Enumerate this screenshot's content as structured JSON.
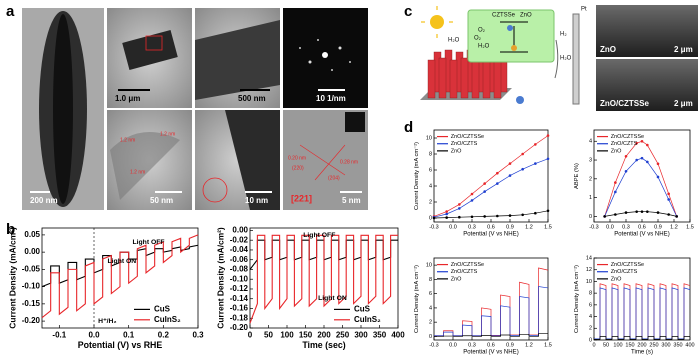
{
  "panel_labels": [
    "a",
    "b",
    "c",
    "d"
  ],
  "micrographs": [
    {
      "scale_bar": "200 nm"
    },
    {
      "scale_bar": "1.0 μm"
    },
    {
      "scale_bar": "500 nm"
    },
    {
      "scale_bar": "10 1/nm"
    },
    {
      "scale_bar": "50 nm",
      "annotations": [
        "1.2 nm",
        "1.2 nm",
        "1.2 nm"
      ]
    },
    {
      "scale_bar": "10 nm"
    },
    {
      "scale_bar": "5 nm",
      "annotations": [
        "0.20 nm",
        "(220)",
        "0.28 nm",
        "(204)",
        "[221]"
      ]
    }
  ],
  "schematic": {
    "labels": [
      "H₂O",
      "O₂",
      "CZTSSe",
      "ZnO",
      "H₂O",
      "O₂",
      "Pt",
      "H₂",
      "H₂O"
    ]
  },
  "sem": [
    {
      "label": "ZnO",
      "scale_bar": "2 μm"
    },
    {
      "label": "ZnO/CZTSSe",
      "scale_bar": "2 μm"
    }
  ],
  "chart_data": [
    {
      "type": "line",
      "xlabel": "Potential (V) vs RHE",
      "ylabel": "Current Density (mA/cm²)",
      "x": [
        -0.15,
        -0.125,
        -0.125,
        -0.1,
        -0.1,
        -0.075,
        -0.075,
        -0.05,
        -0.05,
        -0.025,
        -0.025,
        0,
        0,
        0.025,
        0.025,
        0.05,
        0.05,
        0.075,
        0.075,
        0.1,
        0.1,
        0.125,
        0.125,
        0.15,
        0.15,
        0.175,
        0.175,
        0.2,
        0.2,
        0.225,
        0.225,
        0.25,
        0.25,
        0.275,
        0.275,
        0.3
      ],
      "xlim": [
        -0.15,
        0.3
      ],
      "xticks": [
        -0.1,
        {
          "value": 0,
          "label": "0.0"
        },
        0.1,
        0.2,
        0.3
      ],
      "ylim": [
        -0.22,
        0.07
      ],
      "yticks": [
        {
          "value": -0.2,
          "label": "-0.20"
        },
        -0.15,
        {
          "value": -0.1,
          "label": "-0.10"
        },
        -0.05,
        {
          "value": 0,
          "label": "0.00"
        },
        0.05
      ],
      "reference_x": 0,
      "legend": "lower right",
      "annotations": [
        "Light OFF",
        "Light ON",
        "H⁺/H₂"
      ],
      "series": [
        {
          "name": "CuS",
          "color": "#000000",
          "values": [
            -0.1,
            -0.09,
            -0.04,
            -0.04,
            -0.09,
            -0.08,
            -0.03,
            -0.03,
            -0.08,
            -0.07,
            -0.02,
            -0.02,
            -0.06,
            -0.05,
            -0.01,
            -0.01,
            -0.04,
            -0.03,
            0,
            0,
            -0.02,
            -0.02,
            0.005,
            0.01,
            -0.01,
            0,
            0.01,
            0.01,
            0,
            0.005,
            0.01,
            0.015,
            0.005,
            0.01,
            0.015,
            0.02
          ]
        },
        {
          "name": "CuInS₂",
          "color": "#e8262a",
          "values": [
            -0.19,
            -0.17,
            -0.06,
            -0.06,
            -0.18,
            -0.16,
            -0.05,
            -0.05,
            -0.17,
            -0.15,
            -0.04,
            -0.03,
            -0.15,
            -0.13,
            -0.02,
            -0.01,
            -0.12,
            -0.1,
            0,
            0,
            -0.09,
            -0.07,
            0.01,
            0.02,
            -0.06,
            -0.04,
            0.02,
            0.03,
            -0.03,
            -0.01,
            0.03,
            0.04,
            0,
            0.02,
            0.04,
            0.05
          ]
        }
      ]
    },
    {
      "type": "line",
      "xlabel": "Time (sec)",
      "ylabel": "Current Density (mA/cm²)",
      "x": [
        0,
        20,
        20,
        40,
        40,
        60,
        60,
        80,
        80,
        100,
        100,
        120,
        120,
        140,
        140,
        160,
        160,
        180,
        180,
        200,
        200,
        220,
        220,
        240,
        240,
        260,
        260,
        280,
        280,
        300,
        300,
        320,
        320,
        340,
        340,
        360,
        360,
        380,
        380,
        400
      ],
      "xlim": [
        0,
        400
      ],
      "xticks": [
        0,
        50,
        100,
        150,
        200,
        250,
        300,
        350,
        400
      ],
      "ylim": [
        -0.2,
        0.005
      ],
      "yticks": [
        {
          "value": -0.2,
          "label": "-0.20"
        },
        -0.18,
        -0.16,
        -0.14,
        -0.12,
        {
          "value": -0.1,
          "label": "-0.10"
        },
        -0.08,
        -0.06,
        -0.04,
        -0.02,
        {
          "value": 0,
          "label": "0.00"
        }
      ],
      "legend": "lower right",
      "annotations": [
        "Light OFF",
        "Light ON"
      ],
      "series": [
        {
          "name": "CuS",
          "color": "#000000",
          "values": [
            -0.08,
            -0.06,
            -0.02,
            -0.02,
            -0.06,
            -0.055,
            -0.02,
            -0.02,
            -0.06,
            -0.055,
            -0.02,
            -0.02,
            -0.06,
            -0.055,
            -0.02,
            -0.02,
            -0.06,
            -0.055,
            -0.02,
            -0.02,
            -0.06,
            -0.055,
            -0.02,
            -0.02,
            -0.06,
            -0.055,
            -0.02,
            -0.02,
            -0.06,
            -0.055,
            -0.02,
            -0.02,
            -0.06,
            -0.055,
            -0.02,
            -0.02,
            -0.06,
            -0.055,
            -0.02,
            -0.02
          ]
        },
        {
          "name": "CuInS₂",
          "color": "#e8262a",
          "values": [
            -0.19,
            -0.15,
            -0.01,
            -0.01,
            -0.16,
            -0.14,
            -0.01,
            -0.01,
            -0.16,
            -0.14,
            -0.01,
            -0.01,
            -0.155,
            -0.14,
            -0.01,
            -0.01,
            -0.155,
            -0.14,
            -0.01,
            -0.01,
            -0.155,
            -0.14,
            -0.01,
            -0.01,
            -0.15,
            -0.135,
            -0.01,
            -0.01,
            -0.15,
            -0.135,
            -0.01,
            -0.01,
            -0.15,
            -0.135,
            -0.01,
            -0.01,
            -0.15,
            -0.135,
            -0.01,
            -0.01
          ]
        }
      ]
    },
    {
      "type": "line",
      "xlabel": "Potential (V vs NHE)",
      "ylabel": "Current Density (mA cm⁻²)",
      "markers": true,
      "x": [
        -0.3,
        -0.1,
        0.1,
        0.3,
        0.5,
        0.7,
        0.9,
        1.1,
        1.3,
        1.5
      ],
      "xlim": [
        -0.3,
        1.5
      ],
      "xticks": [
        -0.3,
        {
          "value": 0,
          "label": "0.0"
        },
        0.3,
        0.6,
        0.9,
        1.2,
        1.5
      ],
      "ylim": [
        -0.5,
        11
      ],
      "yticks": [
        0,
        2,
        4,
        6,
        8,
        10
      ],
      "legend": "upper left",
      "series": [
        {
          "name": "ZnO/CZTSSe",
          "color": "#e8262a",
          "values": [
            0.2,
            0.8,
            1.7,
            3,
            4.3,
            5.6,
            6.8,
            8,
            9.2,
            10.3
          ]
        },
        {
          "name": "ZnO/CZTS",
          "color": "#1f3fd0",
          "values": [
            0.1,
            0.5,
            1.2,
            2.2,
            3.3,
            4.3,
            5.3,
            6.1,
            6.8,
            7.4
          ]
        },
        {
          "name": "ZnO",
          "color": "#000000",
          "values": [
            0,
            0.05,
            0.1,
            0.15,
            0.2,
            0.25,
            0.3,
            0.4,
            0.6,
            0.9
          ]
        }
      ]
    },
    {
      "type": "line",
      "xlabel": "Potential (V vs NHE)",
      "ylabel": "ABPE (%)",
      "markers": true,
      "x": [
        -0.1,
        0.1,
        0.3,
        0.5,
        0.6,
        0.7,
        0.9,
        1.1,
        1.25
      ],
      "xlim": [
        -0.3,
        1.5
      ],
      "xticks": [
        -0.3,
        {
          "value": 0,
          "label": "0.0"
        },
        0.3,
        0.6,
        0.9,
        1.2,
        1.5
      ],
      "ylim": [
        -0.3,
        4.6
      ],
      "yticks": [
        0,
        1,
        2,
        3,
        4
      ],
      "legend": "upper left",
      "series": [
        {
          "name": "ZnO/CZTSSe",
          "color": "#e8262a",
          "values": [
            0,
            1.8,
            3.2,
            3.9,
            4,
            3.8,
            2.8,
            1.2,
            0
          ]
        },
        {
          "name": "ZnO/CZTS",
          "color": "#1f3fd0",
          "values": [
            0,
            1.3,
            2.4,
            3,
            3.1,
            2.9,
            2.1,
            0.9,
            0
          ]
        },
        {
          "name": "ZnO",
          "color": "#000000",
          "values": [
            0,
            0.1,
            0.2,
            0.25,
            0.25,
            0.25,
            0.2,
            0.1,
            0
          ]
        }
      ]
    },
    {
      "type": "line",
      "xlabel": "Potential (V vs NHE)",
      "ylabel": "Current Density (mA cm⁻²)",
      "x": [
        -0.3,
        -0.15,
        -0.15,
        0,
        0,
        0.15,
        0.15,
        0.3,
        0.3,
        0.45,
        0.45,
        0.6,
        0.6,
        0.75,
        0.75,
        0.9,
        0.9,
        1.05,
        1.05,
        1.2,
        1.2,
        1.35,
        1.35,
        1.5
      ],
      "xlim": [
        -0.3,
        1.5
      ],
      "xticks": [
        -0.3,
        {
          "value": 0,
          "label": "0.0"
        },
        0.3,
        0.6,
        0.9,
        1.2,
        1.5
      ],
      "ylim": [
        -0.5,
        11
      ],
      "yticks": [
        0,
        2,
        4,
        6,
        8,
        10
      ],
      "legend": "upper left",
      "series": [
        {
          "name": "ZnO/CZTSSe",
          "color": "#e8262a",
          "values": [
            0.1,
            0.1,
            0.8,
            0.8,
            0.1,
            0.1,
            2.2,
            2.1,
            0.1,
            0.1,
            4,
            3.8,
            0.15,
            0.15,
            5.8,
            5.6,
            0.2,
            0.2,
            7.6,
            7.3,
            0.2,
            0.2,
            9.6,
            9.3
          ]
        },
        {
          "name": "ZnO/CZTS",
          "color": "#1f3fd0",
          "values": [
            0.1,
            0.1,
            0.6,
            0.6,
            0.1,
            0.1,
            1.6,
            1.5,
            0.1,
            0.1,
            2.9,
            2.8,
            0.1,
            0.1,
            4.3,
            4.1,
            0.15,
            0.15,
            5.6,
            5.4,
            0.15,
            0.15,
            7,
            6.8
          ]
        },
        {
          "name": "ZnO",
          "color": "#000000",
          "values": [
            0,
            0,
            0.05,
            0.05,
            0,
            0,
            0.1,
            0.1,
            0,
            0,
            0.15,
            0.15,
            0,
            0,
            0.2,
            0.2,
            0,
            0,
            0.3,
            0.3,
            0,
            0,
            0.4,
            0.4
          ]
        }
      ]
    },
    {
      "type": "line",
      "xlabel": "Time (s)",
      "ylabel": "Current Density (mA cm⁻²)",
      "x": [
        0,
        25,
        25,
        50,
        50,
        75,
        75,
        100,
        100,
        125,
        125,
        150,
        150,
        175,
        175,
        200,
        200,
        225,
        225,
        250,
        250,
        275,
        275,
        300,
        300,
        325,
        325,
        350,
        350,
        375,
        375,
        400
      ],
      "xlim": [
        0,
        400
      ],
      "xticks": [
        0,
        50,
        100,
        150,
        200,
        250,
        300,
        350,
        400
      ],
      "ylim": [
        0,
        14
      ],
      "yticks": [
        0,
        2,
        4,
        6,
        8,
        10,
        12,
        14
      ],
      "legend": "upper left",
      "series": [
        {
          "name": "ZnO/CZTSSe",
          "color": "#e8262a",
          "values": [
            0.2,
            0.2,
            9.6,
            9.3,
            0.2,
            0.2,
            9.6,
            9.3,
            0.2,
            0.2,
            9.6,
            9.3,
            0.2,
            0.2,
            9.6,
            9.3,
            0.2,
            0.2,
            9.6,
            9.3,
            0.2,
            0.2,
            9.6,
            9.3,
            0.2,
            0.2,
            9.6,
            9.3,
            0.2,
            0.2,
            9.6,
            9.3
          ]
        },
        {
          "name": "ZnO/CZTS",
          "color": "#1f3fd0",
          "values": [
            0.2,
            0.2,
            8.9,
            8.6,
            0.2,
            0.2,
            8.9,
            8.6,
            0.2,
            0.2,
            8.9,
            8.6,
            0.2,
            0.2,
            8.9,
            8.6,
            0.2,
            0.2,
            8.9,
            8.6,
            0.2,
            0.2,
            8.9,
            8.6,
            0.2,
            0.2,
            8.9,
            8.6,
            0.2,
            0.2,
            8.9,
            8.6
          ]
        },
        {
          "name": "ZnO",
          "color": "#000000",
          "values": [
            0.1,
            0.1,
            0.6,
            0.6,
            0.1,
            0.1,
            0.6,
            0.6,
            0.1,
            0.1,
            0.6,
            0.6,
            0.1,
            0.1,
            0.6,
            0.6,
            0.1,
            0.1,
            0.6,
            0.6,
            0.1,
            0.1,
            0.6,
            0.6,
            0.1,
            0.1,
            0.6,
            0.6,
            0.1,
            0.1,
            0.6,
            0.6
          ]
        }
      ]
    }
  ]
}
